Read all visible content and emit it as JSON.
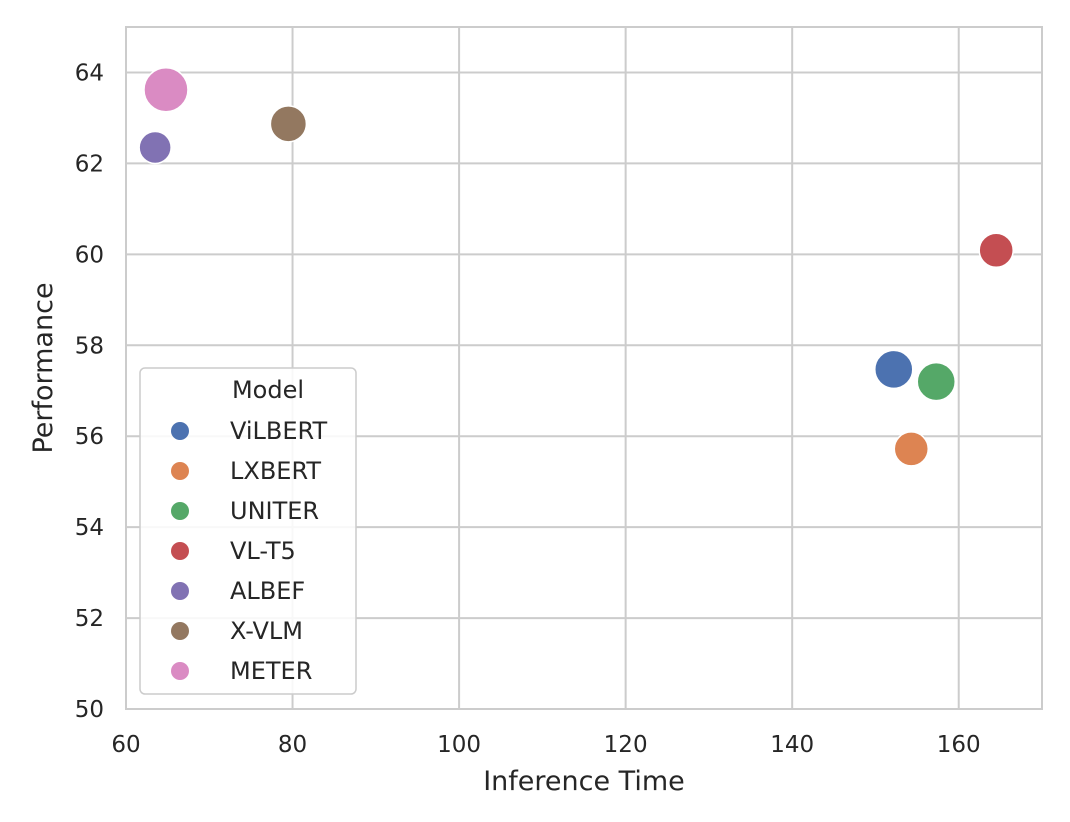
{
  "chart_data": {
    "type": "scatter",
    "xlabel": "Inference Time",
    "ylabel": "Performance",
    "xlim": [
      60,
      170
    ],
    "ylim": [
      50,
      65
    ],
    "xticks": [
      60,
      80,
      100,
      120,
      140,
      160
    ],
    "yticks": [
      50,
      52,
      54,
      56,
      58,
      60,
      62,
      64
    ],
    "grid": true,
    "legend": {
      "title": "Model",
      "placement": "lower-left"
    },
    "series": [
      {
        "name": "ViLBERT",
        "color": "#4c72b0",
        "x": 152.2,
        "y": 57.47,
        "size": 19
      },
      {
        "name": "LXBERT",
        "color": "#dd8452",
        "x": 154.3,
        "y": 55.72,
        "size": 17
      },
      {
        "name": "UNITER",
        "color": "#55a868",
        "x": 157.3,
        "y": 57.2,
        "size": 19
      },
      {
        "name": "VL-T5",
        "color": "#c44e52",
        "x": 164.5,
        "y": 60.09,
        "size": 17
      },
      {
        "name": "ALBEF",
        "color": "#8172b3",
        "x": 63.5,
        "y": 62.35,
        "size": 16
      },
      {
        "name": "X-VLM",
        "color": "#937860",
        "x": 79.5,
        "y": 62.87,
        "size": 18
      },
      {
        "name": "METER",
        "color": "#da8bc3",
        "x": 64.8,
        "y": 63.62,
        "size": 22
      }
    ]
  }
}
